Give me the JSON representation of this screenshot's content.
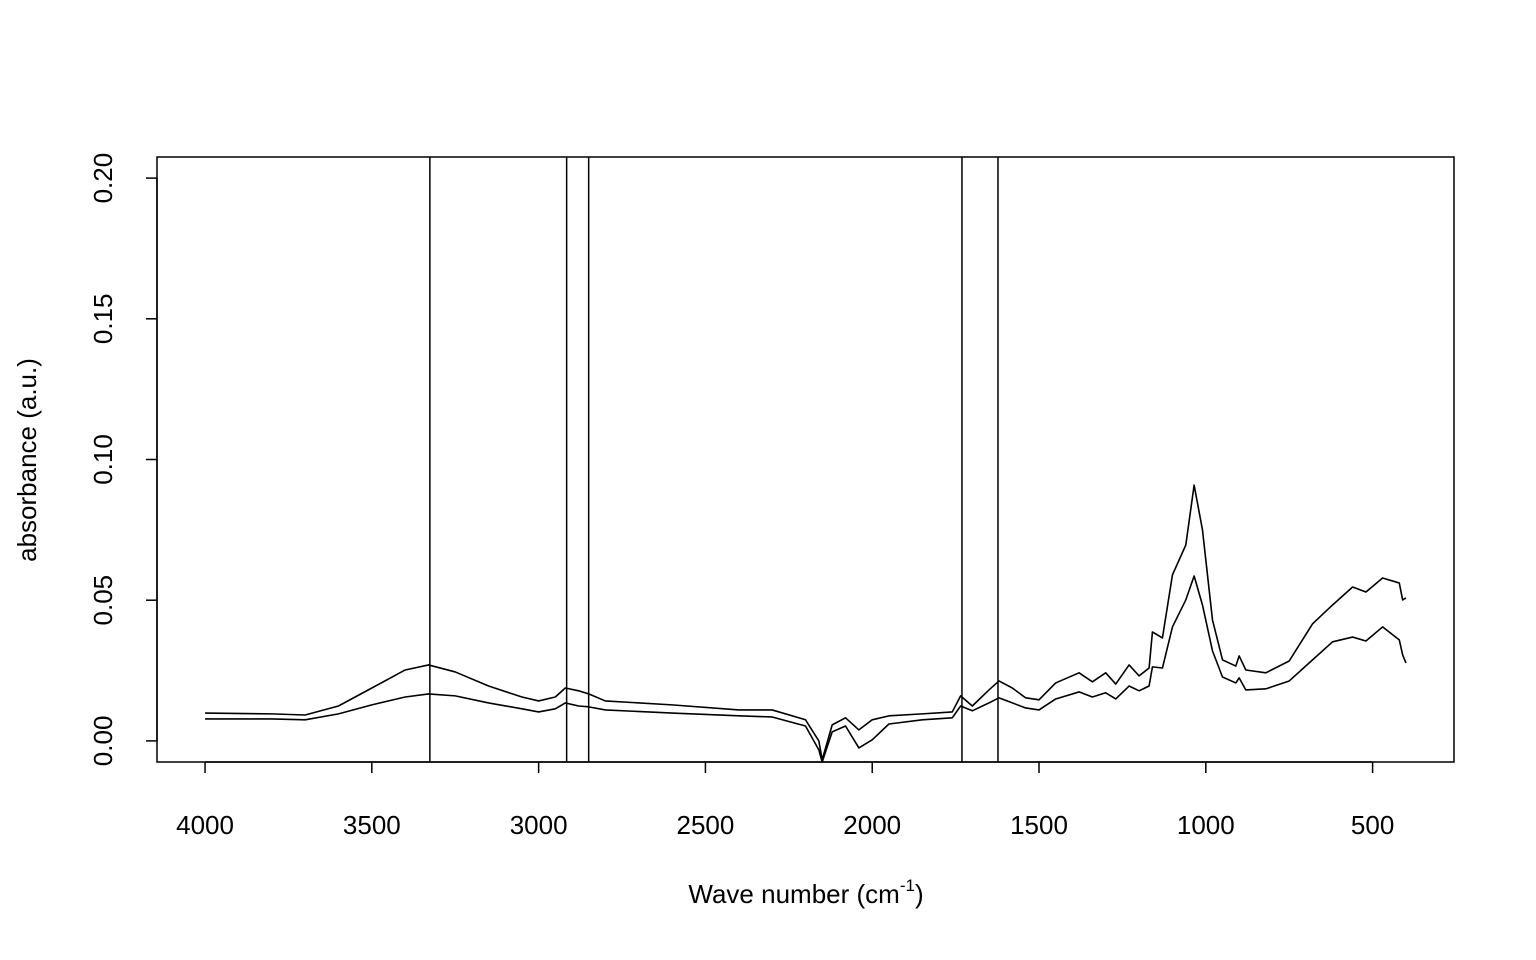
{
  "chart_data": {
    "type": "line",
    "x_label": {
      "text": "Wave number (cm",
      "superscript": "-1",
      "suffix": ")"
    },
    "y_label": "absorbance (a.u.)",
    "xlim": [
      4144,
      256
    ],
    "ylim": [
      -0.0075,
      0.2075
    ],
    "xticks": [
      4000,
      3500,
      3000,
      2500,
      2000,
      1500,
      1000,
      500
    ],
    "yticks": [
      {
        "value": 0,
        "label": "0.00"
      },
      {
        "value": 0.05,
        "label": "0.05"
      },
      {
        "value": 0.1,
        "label": "0.10"
      },
      {
        "value": 0.15,
        "label": "0.15"
      },
      {
        "value": 0.2,
        "label": "0.20"
      }
    ],
    "vlines": [
      3326,
      2916,
      2850,
      1731,
      1623
    ],
    "x": [
      4000,
      3800,
      3700,
      3600,
      3500,
      3400,
      3330,
      3250,
      3150,
      3050,
      3000,
      2950,
      2920,
      2880,
      2850,
      2800,
      2600,
      2400,
      2300,
      2200,
      2160,
      2150,
      2120,
      2080,
      2040,
      2000,
      1950,
      1850,
      1760,
      1735,
      1700,
      1650,
      1620,
      1580,
      1540,
      1500,
      1450,
      1380,
      1340,
      1300,
      1270,
      1230,
      1200,
      1170,
      1160,
      1130,
      1100,
      1060,
      1035,
      1010,
      980,
      950,
      910,
      900,
      880,
      820,
      750,
      680,
      620,
      560,
      520,
      470,
      420,
      410,
      400
    ],
    "series": [
      {
        "color": "#000000",
        "values": [
          0.0099,
          0.0096,
          0.0092,
          0.0124,
          0.0188,
          0.0252,
          0.027,
          0.0245,
          0.0195,
          0.0156,
          0.0142,
          0.0156,
          0.0188,
          0.0178,
          0.0167,
          0.0142,
          0.0128,
          0.011,
          0.011,
          0.0075,
          0.0,
          -0.0067,
          0.0057,
          0.0082,
          0.0039,
          0.0075,
          0.0089,
          0.0096,
          0.0103,
          0.016,
          0.0124,
          0.0181,
          0.0213,
          0.0188,
          0.0153,
          0.0146,
          0.0206,
          0.0242,
          0.021,
          0.0242,
          0.0202,
          0.027,
          0.0231,
          0.0259,
          0.0387,
          0.0366,
          0.059,
          0.0696,
          0.0909,
          0.075,
          0.043,
          0.0288,
          0.0266,
          0.0302,
          0.0252,
          0.0242,
          0.0284,
          0.0416,
          0.0483,
          0.0547,
          0.0529,
          0.0579,
          0.0561,
          0.0501,
          0.0508
        ]
      },
      {
        "color": "#000000",
        "values": [
          0.0078,
          0.0078,
          0.0075,
          0.0096,
          0.0128,
          0.0156,
          0.0167,
          0.016,
          0.0135,
          0.0114,
          0.0103,
          0.0114,
          0.0135,
          0.0124,
          0.0121,
          0.011,
          0.0099,
          0.0089,
          0.0085,
          0.0053,
          -0.0032,
          -0.0075,
          0.0032,
          0.0053,
          -0.0025,
          0.0004,
          0.006,
          0.0075,
          0.0082,
          0.0124,
          0.0107,
          0.0135,
          0.0153,
          0.0135,
          0.0117,
          0.011,
          0.0149,
          0.0174,
          0.0156,
          0.0171,
          0.0149,
          0.0195,
          0.0178,
          0.0195,
          0.0263,
          0.0259,
          0.0405,
          0.0501,
          0.0586,
          0.0483,
          0.032,
          0.0227,
          0.0206,
          0.0224,
          0.0181,
          0.0185,
          0.0213,
          0.0288,
          0.0352,
          0.0369,
          0.0355,
          0.0405,
          0.0359,
          0.0306,
          0.0277
        ]
      }
    ]
  }
}
